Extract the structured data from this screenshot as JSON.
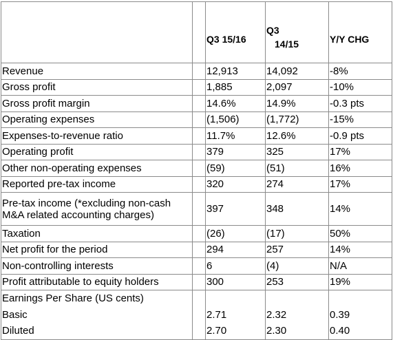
{
  "header": {
    "col1": "Q3 15/16",
    "col2_line1": "Q3",
    "col2_line2": "14/15",
    "col3": "Y/Y CHG"
  },
  "rows": [
    [
      "Revenue",
      "12,913",
      "14,092",
      "-8%"
    ],
    [
      "Gross profit",
      "1,885",
      "2,097",
      "-10%"
    ],
    [
      "Gross profit margin",
      "14.6%",
      "14.9%",
      "-0.3 pts"
    ],
    [
      "Operating expenses",
      "(1,506)",
      "(1,772)",
      "-15%"
    ],
    [
      "Expenses-to-revenue ratio",
      "11.7%",
      "12.6%",
      "-0.9 pts"
    ],
    [
      "Operating profit",
      "379",
      "325",
      "17%"
    ],
    [
      "Other non-operating expenses",
      "(59)",
      "(51)",
      "16%"
    ],
    [
      "Reported pre-tax income",
      "320",
      "274",
      "17%"
    ],
    [
      "Pre-tax income (*excluding non-cash M&A related accounting charges)",
      "397",
      "348",
      "14%"
    ],
    [
      "Taxation",
      "(26)",
      "(17)",
      "50%"
    ],
    [
      "Net profit for the period",
      "294",
      "257",
      "14%"
    ],
    [
      "Non-controlling interests",
      "6",
      "(4)",
      "N/A"
    ],
    [
      "Profit attributable to equity holders",
      "300",
      "253",
      "19%"
    ]
  ],
  "eps": {
    "title": "Earnings Per Share (US cents)",
    "rows": [
      [
        "Basic",
        "2.71",
        "2.32",
        "0.39"
      ],
      [
        "Diluted",
        "2.70",
        "2.30",
        "0.40"
      ]
    ]
  }
}
